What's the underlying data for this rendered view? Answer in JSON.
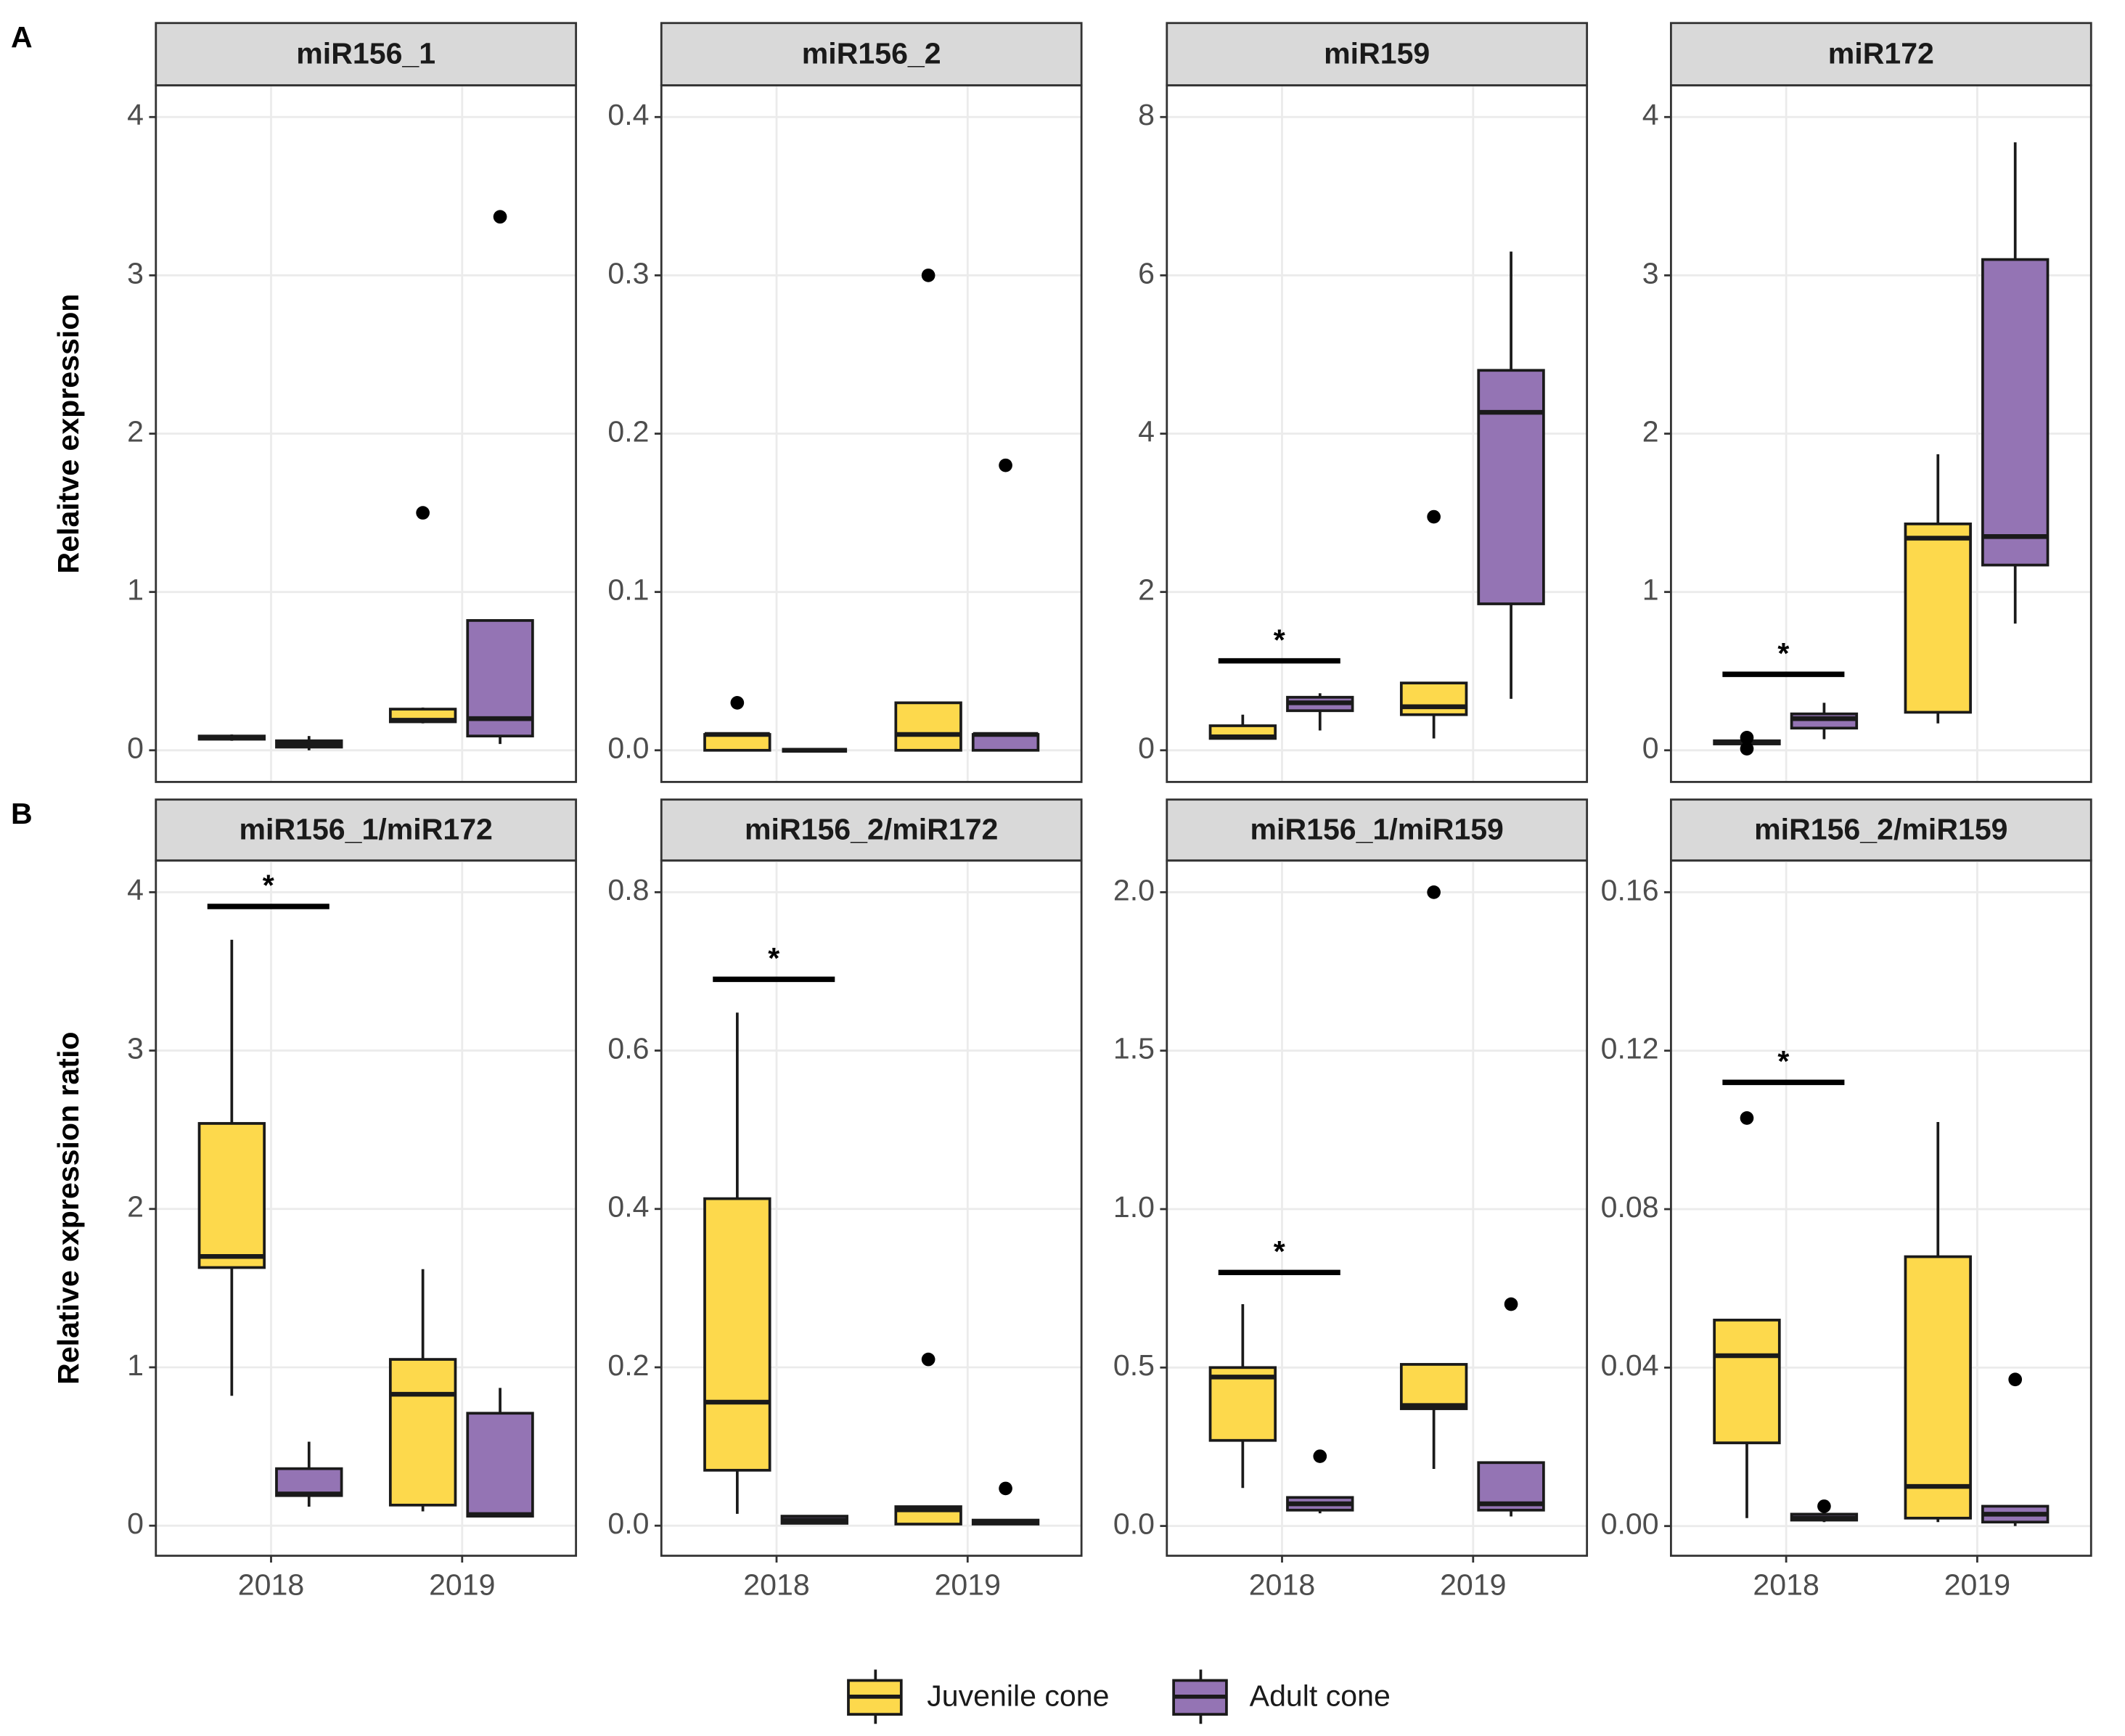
{
  "chart_data": [
    {
      "type": "box",
      "panel_label": "A",
      "ylabel": "Relaitve expression",
      "title": "miR156_1",
      "categories": [
        null,
        null
      ],
      "ylim": [
        -0.2,
        4.2
      ],
      "yticks": [
        0,
        1,
        2,
        3,
        4
      ],
      "series": [
        {
          "name": "Juvenile cone",
          "color": "#fdd94c",
          "values": [
            {
              "min": 0.06,
              "q1": 0.07,
              "median": 0.08,
              "q3": 0.09,
              "max": 0.1,
              "outliers": []
            },
            {
              "min": 0.17,
              "q1": 0.18,
              "median": 0.19,
              "q3": 0.26,
              "max": 0.27,
              "outliers": [
                1.5
              ]
            }
          ]
        },
        {
          "name": "Adult cone",
          "color": "#9474b4",
          "values": [
            {
              "min": 0.0,
              "q1": 0.02,
              "median": 0.04,
              "q3": 0.06,
              "max": 0.09,
              "outliers": []
            },
            {
              "min": 0.04,
              "q1": 0.09,
              "median": 0.2,
              "q3": 0.82,
              "max": 0.82,
              "outliers": [
                3.37
              ]
            }
          ]
        }
      ],
      "annotations": []
    },
    {
      "type": "box",
      "title": "miR156_2",
      "categories": [
        null,
        null
      ],
      "ylim": [
        -0.02,
        0.42
      ],
      "yticks": [
        {
          "value": 0,
          "label": "0.0"
        },
        0.1,
        0.2,
        0.3,
        0.4
      ],
      "series": [
        {
          "name": "Juvenile cone",
          "color": "#fdd94c",
          "values": [
            {
              "min": 0,
              "q1": 0,
              "median": 0.01,
              "q3": 0.01,
              "max": 0.01,
              "outliers": [
                0.03
              ]
            },
            {
              "min": 0,
              "q1": 0,
              "median": 0.01,
              "q3": 0.03,
              "max": 0.03,
              "outliers": [
                0.3
              ]
            }
          ]
        },
        {
          "name": "Adult cone",
          "color": "#9474b4",
          "values": [
            {
              "min": 0,
              "q1": 0,
              "median": 0,
              "q3": 0,
              "max": 0,
              "outliers": []
            },
            {
              "min": 0,
              "q1": 0,
              "median": 0.01,
              "q3": 0.01,
              "max": 0.01,
              "outliers": [
                0.18
              ]
            }
          ]
        }
      ],
      "annotations": []
    },
    {
      "type": "box",
      "title": "miR159",
      "categories": [
        null,
        null
      ],
      "ylim": [
        -0.4,
        8.4
      ],
      "yticks": [
        0,
        2,
        4,
        6,
        8
      ],
      "series": [
        {
          "name": "Juvenile cone",
          "color": "#fdd94c",
          "values": [
            {
              "min": 0.15,
              "q1": 0.15,
              "median": 0.17,
              "q3": 0.31,
              "max": 0.45,
              "outliers": []
            },
            {
              "min": 0.15,
              "q1": 0.45,
              "median": 0.55,
              "q3": 0.85,
              "max": 0.85,
              "outliers": [
                2.95
              ]
            }
          ]
        },
        {
          "name": "Adult cone",
          "color": "#9474b4",
          "values": [
            {
              "min": 0.25,
              "q1": 0.5,
              "median": 0.6,
              "q3": 0.67,
              "max": 0.72,
              "outliers": []
            },
            {
              "min": 0.65,
              "q1": 1.85,
              "median": 4.27,
              "q3": 4.8,
              "max": 6.3,
              "outliers": []
            }
          ]
        }
      ],
      "annotations": [
        {
          "text": "*",
          "y": 1.13
        }
      ]
    },
    {
      "type": "box",
      "title": "miR172",
      "categories": [
        null,
        null
      ],
      "ylim": [
        -0.2,
        4.2
      ],
      "yticks": [
        0,
        1,
        2,
        3,
        4
      ],
      "series": [
        {
          "name": "Juvenile cone",
          "color": "#fdd94c",
          "values": [
            {
              "min": 0.03,
              "q1": 0.04,
              "median": 0.05,
              "q3": 0.06,
              "max": 0.07,
              "outliers": [
                0.08,
                0.01
              ]
            },
            {
              "min": 0.17,
              "q1": 0.24,
              "median": 1.34,
              "q3": 1.43,
              "max": 1.87,
              "outliers": []
            }
          ]
        },
        {
          "name": "Adult cone",
          "color": "#9474b4",
          "values": [
            {
              "min": 0.07,
              "q1": 0.14,
              "median": 0.2,
              "q3": 0.23,
              "max": 0.3,
              "outliers": []
            },
            {
              "min": 0.8,
              "q1": 1.17,
              "median": 1.35,
              "q3": 3.1,
              "max": 3.84,
              "outliers": []
            }
          ]
        }
      ],
      "annotations": [
        {
          "text": "*",
          "y": 0.48
        }
      ]
    },
    {
      "type": "box",
      "panel_label": "B",
      "ylabel": "Relative expression ratio",
      "title": "miR156_1/miR172",
      "categories": [
        "2018",
        "2019"
      ],
      "ylim": [
        -0.19,
        4.2
      ],
      "yticks": [
        0,
        1,
        2,
        3,
        4
      ],
      "series": [
        {
          "name": "Juvenile cone",
          "color": "#fdd94c",
          "values": [
            {
              "min": 0.82,
              "q1": 1.63,
              "median": 1.7,
              "q3": 2.54,
              "max": 3.7,
              "outliers": []
            },
            {
              "min": 0.09,
              "q1": 0.13,
              "median": 0.83,
              "q3": 1.05,
              "max": 1.62,
              "outliers": []
            }
          ]
        },
        {
          "name": "Adult cone",
          "color": "#9474b4",
          "values": [
            {
              "min": 0.12,
              "q1": 0.19,
              "median": 0.2,
              "q3": 0.36,
              "max": 0.53,
              "outliers": []
            },
            {
              "min": 0.06,
              "q1": 0.06,
              "median": 0.07,
              "q3": 0.71,
              "max": 0.87,
              "outliers": []
            }
          ]
        }
      ],
      "annotations": [
        {
          "text": "*",
          "y": 3.91
        }
      ]
    },
    {
      "type": "box",
      "title": "miR156_2/miR172",
      "categories": [
        "2018",
        "2019"
      ],
      "ylim": [
        -0.038,
        0.84
      ],
      "yticks": [
        {
          "value": 0,
          "label": "0.0"
        },
        0.2,
        0.4,
        0.6,
        0.8
      ],
      "series": [
        {
          "name": "Juvenile cone",
          "color": "#fdd94c",
          "values": [
            {
              "min": 0.015,
              "q1": 0.07,
              "median": 0.156,
              "q3": 0.413,
              "max": 0.648,
              "outliers": []
            },
            {
              "min": 0.002,
              "q1": 0.002,
              "median": 0.02,
              "q3": 0.024,
              "max": 0.024,
              "outliers": [
                0.21
              ]
            }
          ]
        },
        {
          "name": "Adult cone",
          "color": "#9474b4",
          "values": [
            {
              "min": 0.003,
              "q1": 0.003,
              "median": 0.007,
              "q3": 0.012,
              "max": 0.012,
              "outliers": []
            },
            {
              "min": 0.002,
              "q1": 0.002,
              "median": 0.005,
              "q3": 0.007,
              "max": 0.007,
              "outliers": [
                0.047
              ]
            }
          ]
        }
      ],
      "annotations": [
        {
          "text": "*",
          "y": 0.69
        }
      ]
    },
    {
      "type": "box",
      "title": "miR156_1/miR159",
      "categories": [
        "2018",
        "2019"
      ],
      "ylim": [
        -0.094,
        2.1
      ],
      "yticks": [
        {
          "value": 0,
          "label": "0.0"
        },
        0.5,
        {
          "value": 1,
          "label": "1.0"
        },
        1.5,
        {
          "value": 2,
          "label": "2.0"
        }
      ],
      "series": [
        {
          "name": "Juvenile cone",
          "color": "#fdd94c",
          "values": [
            {
              "min": 0.12,
              "q1": 0.27,
              "median": 0.47,
              "q3": 0.5,
              "max": 0.7,
              "outliers": []
            },
            {
              "min": 0.18,
              "q1": 0.37,
              "median": 0.38,
              "q3": 0.51,
              "max": 0.51,
              "outliers": [
                2.0
              ]
            }
          ]
        },
        {
          "name": "Adult cone",
          "color": "#9474b4",
          "values": [
            {
              "min": 0.04,
              "q1": 0.05,
              "median": 0.07,
              "q3": 0.09,
              "max": 0.09,
              "outliers": [
                0.22
              ]
            },
            {
              "min": 0.03,
              "q1": 0.05,
              "median": 0.07,
              "q3": 0.2,
              "max": 0.2,
              "outliers": [
                0.7
              ]
            }
          ]
        }
      ],
      "annotations": [
        {
          "text": "*",
          "y": 0.8
        }
      ]
    },
    {
      "type": "box",
      "title": "miR156_2/miR159",
      "categories": [
        "2018",
        "2019"
      ],
      "ylim": [
        -0.0075,
        0.168
      ],
      "yticks": [
        {
          "value": 0,
          "label": "0.00"
        },
        0.04,
        0.08,
        0.12,
        0.16
      ],
      "series": [
        {
          "name": "Juvenile cone",
          "color": "#fdd94c",
          "values": [
            {
              "min": 0.002,
              "q1": 0.021,
              "median": 0.043,
              "q3": 0.052,
              "max": 0.052,
              "outliers": [
                0.103
              ]
            },
            {
              "min": 0.001,
              "q1": 0.002,
              "median": 0.01,
              "q3": 0.068,
              "max": 0.102,
              "outliers": []
            }
          ]
        },
        {
          "name": "Adult cone",
          "color": "#9474b4",
          "values": [
            {
              "min": 0.001,
              "q1": 0.0015,
              "median": 0.002,
              "q3": 0.003,
              "max": 0.003,
              "outliers": [
                0.005
              ]
            },
            {
              "min": 0,
              "q1": 0.001,
              "median": 0.003,
              "q3": 0.005,
              "max": 0.005,
              "outliers": [
                0.037
              ]
            }
          ]
        }
      ],
      "annotations": [
        {
          "text": "*",
          "y": 0.112
        }
      ]
    }
  ]
}
